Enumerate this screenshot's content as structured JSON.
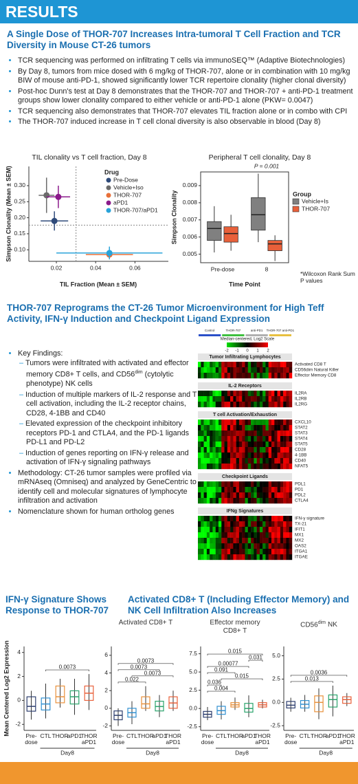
{
  "header": {
    "title": "RESULTS"
  },
  "section1": {
    "title": "A Single Dose of THOR-707 Increases Intra-tumoral T Cell Fraction and TCR Diversity in Mouse CT-26 tumors",
    "bullets": [
      "TCR sequencing was performed on infiltrating T cells via immunoSEQ™ (Adaptive Biotechnologies)",
      "By Day 8, tumors from mice dosed with 6 mg/kg of THOR-707, alone or in combination with 10 mg/kg BIW of mouse anti-PD-1, showed significantly lower TCR repertoire clonality (higher clonal diversity)",
      "Post-hoc Dunn's test at Day 8 demonstrates that the THOR-707 and THOR-707 + anti-PD-1 treatment groups show lower clonality compared to either vehicle or anti-PD-1 alone (PKW= 0.0047)",
      "TCR sequencing also demonstrates that THOR-707 elevates TIL fraction alone or in combo with CPI",
      "The THOR-707 induced increase in T cell clonal diversity is also observable in blood (Day 8)"
    ]
  },
  "section2": {
    "title": "THOR-707 Reprograms the CT-26 Tumor Microenvironment for High Teff Activity, IFN-γ Induction and Checkpoint Ligand Expression",
    "key_findings": {
      "heading": "Key Findings:",
      "items": [
        {
          "text": "Tumors were infiltrated with activated and effector memory CD8+ T cells, and CD56",
          "sup": "dim",
          "tail": "(cytolytic phenotype) NK cells"
        },
        "Induction of multiple markers of IL-2 response and T cell activation, including the IL-2 receptor chains, CD28, 4-1BB and CD40",
        "Elevated expression of the checkpoint inhibitory receptors PD-1 and CTLA4, and the PD-1 ligands PD-L1 and PD-L2",
        "Induction of genes reporting on IFN-γ release and activation of IFN-γ signaling pathways"
      ]
    },
    "bullets": [
      "Methodology: CT-26 tumor samples were profiled via mRNAseq (Omniseq) and analyzed by GeneCentric to identify cell and molecular signatures of lymphocyte infiltration and activation",
      "Nomenclature shown for human ortholog genes"
    ],
    "heatmap": {
      "scale_label": "Median-centered, Log2 Scale",
      "clim": [
        -2,
        2
      ],
      "cticks": [
        -2,
        -1,
        0,
        1,
        2
      ],
      "groups": [
        {
          "name": "Control",
          "color": "#2a4fc8"
        },
        {
          "name": "THOR-707",
          "color": "#3fbf3f"
        },
        {
          "name": "anti-PD1",
          "color": "#b0b0b0"
        },
        {
          "name": "THOR-707 anti-PD1",
          "color": "#e8c040"
        }
      ],
      "panels": [
        {
          "name": "Tumor Infiltrating Lymphocytes",
          "genes": [
            "Activated CD8 T",
            "CD56dim Natural Killer",
            "Effector Memory CD8"
          ]
        },
        {
          "name": "IL-2 Receptors",
          "genes": [
            "IL2RA",
            "IL2RB",
            "IL2RG"
          ]
        },
        {
          "name": "T cell Activation/Exhaustion",
          "genes": [
            "CXCL10",
            "STAT2",
            "STAT3",
            "STAT4",
            "STAT5",
            "CD28",
            "4-1BB",
            "CD40",
            "NFAT5"
          ]
        },
        {
          "name": "Checkpoint Ligands",
          "genes": [
            "PDL1",
            "PD1",
            "PDL2",
            "CTLA4"
          ]
        },
        {
          "name": "IFNg Signatures",
          "genes": [
            "IFN-γ signature",
            "TX-21",
            "IFIT1",
            "MX1",
            "MX2",
            "OAS2",
            "ITGA1",
            "ITGAE"
          ]
        }
      ]
    }
  },
  "section3": {
    "left_title": "IFN-γ Signature Shows Response to THOR-707",
    "right_title": "Activated CD8+ T (Including Effector Memory) and NK Cell Infiltration Also Increases"
  },
  "chart_data": [
    {
      "type": "scatter",
      "title": "TIL clonality vs T cell fraction, Day 8",
      "x_label": "TIL Fraction (Mean ± SEM)",
      "y_label": "Simpson Clonality (Mean ± SEM)",
      "xlim": [
        0.006,
        0.077
      ],
      "xticks": [
        {
          "value": 0.02,
          "label": "0.02"
        },
        {
          "value": 0.04,
          "label": "0.04"
        },
        {
          "value": 0.06,
          "label": "0.06"
        }
      ],
      "ylim": [
        0.064,
        0.36
      ],
      "yticks": [
        {
          "value": 0.1,
          "label": "0.10"
        },
        0.15,
        {
          "value": 0.2,
          "label": "0.20"
        },
        0.25,
        {
          "value": 0.3,
          "label": "0.30"
        }
      ],
      "ref_x": 0.03,
      "ref_y": 0.177,
      "legend_title": "Drug",
      "series": [
        {
          "name": "Pre-Dose",
          "color": "#2e4a7a",
          "x": 0.019,
          "y": 0.19,
          "xerr": 0.007,
          "yerr": 0.03
        },
        {
          "name": "Vehicle+Iso",
          "color": "#6b6b6b",
          "x": 0.015,
          "y": 0.27,
          "xerr": 0.004,
          "yerr": 0.055
        },
        {
          "name": "THOR-707",
          "color": "#e8703a",
          "x": 0.047,
          "y": 0.085,
          "xerr": 0.012,
          "yerr": 0.01
        },
        {
          "name": "aPD1",
          "color": "#8b1a8b",
          "x": 0.021,
          "y": 0.265,
          "xerr": 0.006,
          "yerr": 0.035
        },
        {
          "name": "THOR-707/aPD1",
          "color": "#29a3d9",
          "x": 0.047,
          "y": 0.09,
          "xerr": 0.027,
          "yerr": 0.02
        }
      ]
    },
    {
      "type": "grouped-box",
      "title": "Peripheral T cell clonality, Day 8",
      "x_label": "Time Point",
      "y_label": "Simpson Clonality",
      "categories": [
        "Pre-dose",
        "8"
      ],
      "ylim": [
        0.0045,
        0.0098
      ],
      "yticks": [
        0.005,
        0.006,
        0.007,
        0.008,
        0.009
      ],
      "annotation": "P = 0.001",
      "legend_title": "Group",
      "footnote": "*Wilcoxon Rank Sum P values",
      "series": [
        {
          "name": "Vehicle+Is",
          "color": "#808080",
          "boxes": [
            {
              "min": 0.0051,
              "q1": 0.0058,
              "median": 0.0065,
              "q3": 0.0069,
              "max": 0.0078
            },
            {
              "min": 0.0057,
              "q1": 0.0064,
              "median": 0.0073,
              "q3": 0.0083,
              "max": 0.0097
            }
          ]
        },
        {
          "name": "THOR-707",
          "color": "#e8603a",
          "boxes": [
            {
              "min": 0.0052,
              "q1": 0.0057,
              "median": 0.0062,
              "q3": 0.0066,
              "max": 0.0073
            },
            {
              "min": 0.0046,
              "q1": 0.0052,
              "median": 0.0056,
              "q3": 0.0058,
              "max": 0.0061
            }
          ]
        }
      ]
    },
    {
      "type": "box",
      "y_label": "Mean Centered Log2 Expression",
      "categories": [
        "Pre-dose",
        "CTL",
        "THOR",
        "aPD1",
        "THOR aPD1"
      ],
      "group_label": "Day8",
      "colors": [
        "#2d3e6e",
        "#2f8fd0",
        "#e8903a",
        "#2aa36b",
        "#e8603a"
      ],
      "ylim": [
        -2.5,
        4.5
      ],
      "yticks": [
        -2,
        0,
        2,
        4
      ],
      "boxes": [
        {
          "min": -1.6,
          "q1": -0.9,
          "median": -0.5,
          "q3": 0.3,
          "max": 0.8
        },
        {
          "min": -1.5,
          "q1": -0.8,
          "median": -0.3,
          "q3": 0.2,
          "max": 1.4
        },
        {
          "min": -0.6,
          "q1": -0.2,
          "median": 0.3,
          "q3": 1.2,
          "max": 1.8
        },
        {
          "min": -1.2,
          "q1": -0.3,
          "median": 0.3,
          "q3": 0.8,
          "max": 1.8
        },
        {
          "min": -0.8,
          "q1": 0,
          "median": 0.6,
          "q3": 1.2,
          "max": 2.2
        }
      ],
      "brackets": [
        {
          "from": 1,
          "to": 4,
          "label": "0.0073"
        }
      ]
    },
    {
      "type": "box",
      "title": "Activated CD8+ T",
      "categories": [
        "Pre-dose",
        "CTL",
        "THOR",
        "aPD1",
        "THOR aPD1"
      ],
      "group_label": "Day8",
      "colors": [
        "#2d3e6e",
        "#2f8fd0",
        "#e8903a",
        "#2aa36b",
        "#e8603a"
      ],
      "ylim": [
        -2.5,
        7
      ],
      "yticks": [
        -2,
        0,
        2,
        4,
        6
      ],
      "boxes": [
        {
          "min": -2,
          "q1": -1.3,
          "median": -0.8,
          "q3": -0.3,
          "max": 0
        },
        {
          "min": -1.8,
          "q1": -1,
          "median": -0.5,
          "q3": 0,
          "max": 0.8
        },
        {
          "min": -0.3,
          "q1": 0,
          "median": 0.5,
          "q3": 1.3,
          "max": 2.5
        },
        {
          "min": -1,
          "q1": -0.3,
          "median": 0.2,
          "q3": 0.8,
          "max": 1.5
        },
        {
          "min": -0.3,
          "q1": 0,
          "median": 0.6,
          "q3": 1.3,
          "max": 2
        }
      ],
      "brackets": [
        {
          "from": 0,
          "to": 4,
          "label": "0.0073"
        },
        {
          "from": 0,
          "to": 3,
          "label": "0.0073"
        },
        {
          "from": 1,
          "to": 4,
          "label": "0.0073"
        },
        {
          "from": 0,
          "to": 2,
          "label": "0.022"
        }
      ]
    },
    {
      "type": "box",
      "title": "Effector memory CD8+ T",
      "categories": [
        "Pre-dose",
        "CTL",
        "THOR",
        "aPD1",
        "THOR aPD1"
      ],
      "group_label": "Day8",
      "colors": [
        "#2d3e6e",
        "#2f8fd0",
        "#e8903a",
        "#2aa36b",
        "#e8603a"
      ],
      "ylim": [
        -3,
        8.5
      ],
      "yticks": [
        -2.5,
        {
          "value": 0,
          "label": "0.0"
        },
        2.5,
        {
          "value": 5,
          "label": "5.0"
        },
        7.5
      ],
      "boxes": [
        {
          "min": -1.6,
          "q1": -1.2,
          "median": -0.8,
          "q3": -0.4,
          "max": 0.2
        },
        {
          "min": -1.5,
          "q1": -0.8,
          "median": -0.3,
          "q3": 0.3,
          "max": 1
        },
        {
          "min": -0.2,
          "q1": 0.2,
          "median": 0.5,
          "q3": 0.8,
          "max": 1.5
        },
        {
          "min": -1.2,
          "q1": -0.5,
          "median": 0,
          "q3": 0.7,
          "max": 1.8
        },
        {
          "min": 0,
          "q1": 0.2,
          "median": 0.5,
          "q3": 0.8,
          "max": 1.2
        }
      ],
      "brackets": [
        {
          "from": 0,
          "to": 4,
          "label": "0.015"
        },
        {
          "from": 3,
          "to": 4,
          "label": "0.031"
        },
        {
          "from": 0,
          "to": 3,
          "label": "0.00077"
        },
        {
          "from": 0,
          "to": 2,
          "label": "0.091"
        },
        {
          "from": 1,
          "to": 4,
          "label": "0.015"
        },
        {
          "from": 0,
          "to": 1,
          "label": "0.036"
        },
        {
          "from": 0,
          "to": 2,
          "label": "0.004"
        }
      ]
    },
    {
      "type": "box",
      "title": "CD56",
      "title_sup": "dim",
      "title_end": "NK",
      "categories": [
        "Pre-dose",
        "CTL",
        "THOR",
        "aPD1",
        "THOR aPD1"
      ],
      "group_label": "Day8",
      "colors": [
        "#2d3e6e",
        "#2f8fd0",
        "#e8903a",
        "#2aa36b",
        "#e8603a"
      ],
      "ylim": [
        -3,
        6
      ],
      "yticks": [
        -2.5,
        {
          "value": 0,
          "label": "0.0"
        },
        2.5,
        {
          "value": 5,
          "label": "5.0"
        }
      ],
      "boxes": [
        {
          "min": -1,
          "q1": -0.6,
          "median": -0.3,
          "q3": 0.1,
          "max": 0.5
        },
        {
          "min": -1,
          "q1": -0.6,
          "median": -0.2,
          "q3": 0.2,
          "max": 0.8
        },
        {
          "min": -1.8,
          "q1": -1,
          "median": 0,
          "q3": 0.7,
          "max": 1.5
        },
        {
          "min": -1.5,
          "q1": -0.5,
          "median": 0.3,
          "q3": 0.8,
          "max": 1.8
        },
        {
          "min": -0.4,
          "q1": -0.1,
          "median": 0.3,
          "q3": 0.6,
          "max": 1
        }
      ],
      "brackets": [
        {
          "from": 0,
          "to": 4,
          "label": "0.0036"
        },
        {
          "from": 0,
          "to": 3,
          "label": "0.013"
        }
      ]
    }
  ]
}
